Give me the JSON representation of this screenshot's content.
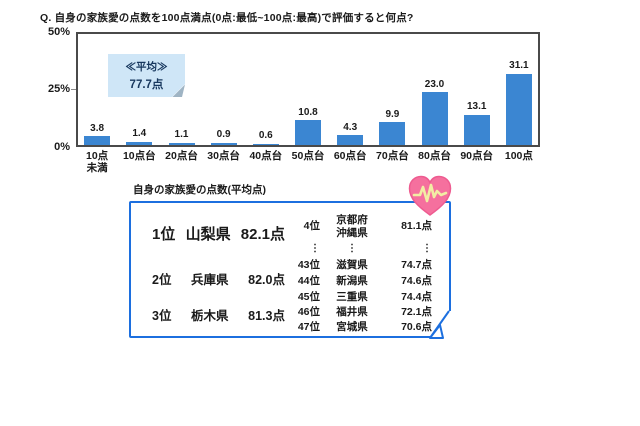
{
  "question_title": "Q. 自身の家族愛の点数を100点満点(0点:最低~100点:最高)で評価すると何点?",
  "chart_data": {
    "type": "bar",
    "title": "Q. 自身の家族愛の点数を100点満点(0点:最低~100点:最高)で評価すると何点?",
    "categories": [
      "10点\n未満",
      "10点台",
      "20点台",
      "30点台",
      "40点台",
      "50点台",
      "60点台",
      "70点台",
      "80点台",
      "90点台",
      "100点"
    ],
    "values": [
      3.8,
      1.4,
      1.1,
      0.9,
      0.6,
      10.8,
      4.3,
      9.9,
      23.0,
      13.1,
      31.1
    ],
    "yticks": [
      "50%",
      "25%",
      "0%"
    ],
    "ylim": [
      0,
      50
    ],
    "grid": false,
    "legend": false,
    "bar_color": "#3b86d2"
  },
  "average_callout": {
    "line1": "≪平均≫",
    "line2": "77.7点"
  },
  "ranking": {
    "title": "自身の家族愛の点数(平均点)",
    "left_rows": [
      {
        "rank": "1位",
        "pref": "山梨県",
        "score": "82.1点"
      },
      {
        "rank": "2位",
        "pref": "兵庫県",
        "score": "82.0点"
      },
      {
        "rank": "3位",
        "pref": "栃木県",
        "score": "81.3点"
      }
    ],
    "right_rows": [
      {
        "rank": "4位",
        "pref": "京都府\n沖縄県",
        "score": "81.1点"
      },
      {
        "rank": "⋮",
        "pref": "⋮",
        "score": "⋮",
        "ellipsis": true
      },
      {
        "rank": "43位",
        "pref": "滋賀県",
        "score": "74.7点"
      },
      {
        "rank": "44位",
        "pref": "新潟県",
        "score": "74.6点"
      },
      {
        "rank": "45位",
        "pref": "三重県",
        "score": "74.4点"
      },
      {
        "rank": "46位",
        "pref": "福井県",
        "score": "72.1点"
      },
      {
        "rank": "47位",
        "pref": "宮城県",
        "score": "70.6点"
      }
    ]
  },
  "icons": {
    "heart": "heart-pulse-icon"
  },
  "colors": {
    "bar": "#3b86d2",
    "plot_frame": "#4a4a4a",
    "table_border": "#1c6fdf",
    "callout_bg": "#cfe6f7",
    "callout_text": "#17375e",
    "callout_fold": "#9fb4c4",
    "heart_pink": "#f5709e",
    "heart_stroke": "#ee5b90",
    "ecg_line": "#f2eda4",
    "text": "#1a1a1a"
  }
}
